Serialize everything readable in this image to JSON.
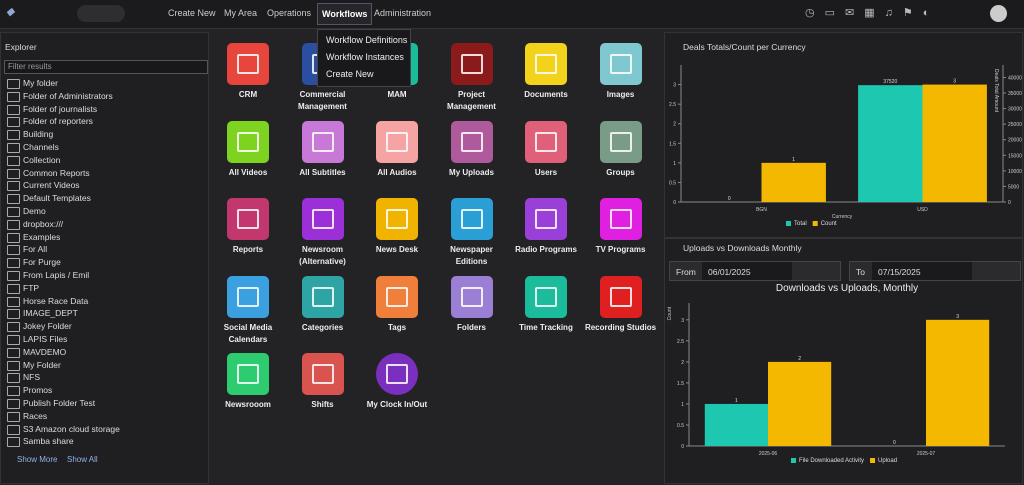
{
  "nav": {
    "menu": [
      "Create New",
      "My Area",
      "Operations",
      "Workflows",
      "Administration"
    ],
    "dropdown": [
      "Workflow Definitions",
      "Workflow Instances",
      "Create New"
    ]
  },
  "explorer": {
    "title": "Explorer",
    "filter": "Filter results",
    "items": [
      "My folder",
      "Folder of Administrators",
      "Folder of journalists",
      "Folder of reporters",
      "Building",
      "Channels",
      "Collection",
      "Common Reports",
      "Current Videos",
      "Default Templates",
      "Demo",
      "dropbox:///",
      "Examples",
      "For All",
      "For Purge",
      "From Lapis / Emil",
      "FTP",
      "Horse Race Data",
      "IMAGE_DEPT",
      "Jokey Folder",
      "LAPIS Files",
      "MAVDEMO",
      "My Folder",
      "NFS",
      "Promos",
      "Publish Folder Test",
      "Races",
      "S3 Amazon cloud storage",
      "Samba share"
    ],
    "show_more": "Show More",
    "show_all": "Show All"
  },
  "apps": [
    {
      "label": "CRM",
      "color": "#e8453c"
    },
    {
      "label": "Commercial Management",
      "color": "#2c4ea0"
    },
    {
      "label": "MAM",
      "color": "#1abc9c"
    },
    {
      "label": "Project Management",
      "color": "#8b1a1a"
    },
    {
      "label": "Documents",
      "color": "#f2d21b"
    },
    {
      "label": "Images",
      "color": "#7fc8d0"
    },
    {
      "label": "All Videos",
      "color": "#7ed321"
    },
    {
      "label": "All Subtitles",
      "color": "#c879d8"
    },
    {
      "label": "All Audios",
      "color": "#f5a3a3"
    },
    {
      "label": "My Uploads",
      "color": "#b05a9e"
    },
    {
      "label": "Users",
      "color": "#e0607a"
    },
    {
      "label": "Groups",
      "color": "#7a9c86"
    },
    {
      "label": "Reports",
      "color": "#c2386e"
    },
    {
      "label": "Newsroom (Alternative)",
      "color": "#9b30d9"
    },
    {
      "label": "News Desk",
      "color": "#f0b400"
    },
    {
      "label": "Newspaper Editions",
      "color": "#2a9fd6"
    },
    {
      "label": "Radio Programs",
      "color": "#9b3fd9"
    },
    {
      "label": "TV Programs",
      "color": "#e020e0"
    },
    {
      "label": "Social Media Calendars",
      "color": "#3aa0e0"
    },
    {
      "label": "Categories",
      "color": "#2fa4a4"
    },
    {
      "label": "Tags",
      "color": "#f07f3c"
    },
    {
      "label": "Folders",
      "color": "#9b7fd4"
    },
    {
      "label": "Time Tracking",
      "color": "#1abc9c"
    },
    {
      "label": "Recording Studios",
      "color": "#e02020"
    },
    {
      "label": "Newsrooom",
      "color": "#2ecc71"
    },
    {
      "label": "Shifts",
      "color": "#d9534f"
    },
    {
      "label": "My Clock In/Out",
      "color": "#7b2fbf"
    }
  ],
  "widgets": [
    {
      "title": "Deals Totals/Count per Currency",
      "chart": {
        "type": "bar",
        "categories": [
          "BGN",
          "USD"
        ],
        "x_label": "Currency",
        "y_label": "Deals Count",
        "y2_label": "Deals Total Amount",
        "series": [
          {
            "name": "Total",
            "color": "#1ec8b0",
            "values": [
              0,
              37520
            ],
            "axis": "y2"
          },
          {
            "name": "Count",
            "color": "#f5b800",
            "values": [
              1,
              3
            ]
          }
        ],
        "ylim": [
          0,
          3.5
        ],
        "yticks": [
          0,
          0.5,
          1,
          1.5,
          2,
          2.5,
          3
        ],
        "y2lim": [
          0,
          44000
        ],
        "y2ticks": [
          0,
          5000,
          10000,
          15000,
          20000,
          25000,
          30000,
          35000,
          40000
        ]
      }
    },
    {
      "title": "Uploads vs Downloads Monthly",
      "from_label": "From",
      "from": "06/01/2025",
      "to_label": "To",
      "to": "07/15/2025",
      "chart": {
        "type": "bar",
        "title": "Downloads vs Uploads, Monthly",
        "categories": [
          "2025-06",
          "2025-07"
        ],
        "y_label": "Count",
        "series": [
          {
            "name": "File Downloaded Activity",
            "color": "#1ec8b0",
            "values": [
              1,
              0
            ]
          },
          {
            "name": "Upload",
            "color": "#f5b800",
            "values": [
              2,
              3
            ]
          }
        ],
        "ylim": [
          0,
          3.4
        ],
        "yticks": [
          0,
          0.5,
          1,
          1.5,
          2,
          2.5,
          3
        ]
      }
    }
  ]
}
